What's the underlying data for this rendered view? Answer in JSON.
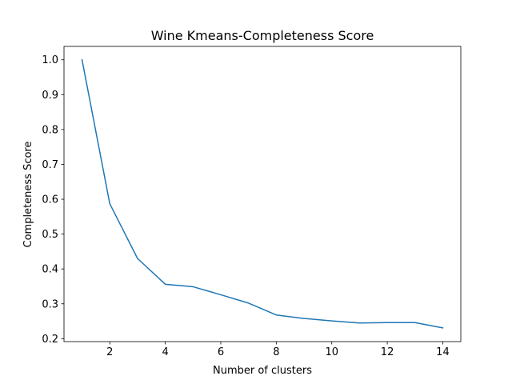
{
  "chart_data": {
    "type": "line",
    "title": "Wine Kmeans-Completeness Score",
    "xlabel": "Number of clusters",
    "ylabel": "Completeness Score",
    "x": [
      1,
      2,
      3,
      4,
      5,
      6,
      7,
      8,
      9,
      10,
      11,
      12,
      13,
      14
    ],
    "series": [
      {
        "values": [
          1.0,
          0.587,
          0.43,
          0.356,
          0.349,
          0.326,
          0.302,
          0.268,
          0.258,
          0.251,
          0.245,
          0.246,
          0.246,
          0.231
        ],
        "color": "#1f77b4"
      }
    ],
    "xlim": [
      0.35,
      14.65
    ],
    "ylim": [
      0.1916,
      1.0384
    ],
    "xticks": [
      2,
      4,
      6,
      8,
      10,
      12,
      14
    ],
    "yticks": [
      0.2,
      0.3,
      0.4,
      0.5,
      0.6,
      0.7,
      0.8,
      0.9,
      1.0
    ],
    "xtick_labels": [
      "2",
      "4",
      "6",
      "8",
      "10",
      "12",
      "14"
    ],
    "ytick_labels": [
      "0.2",
      "0.3",
      "0.4",
      "0.5",
      "0.6",
      "0.7",
      "0.8",
      "0.9",
      "1.0"
    ],
    "grid": false,
    "legend": false
  }
}
